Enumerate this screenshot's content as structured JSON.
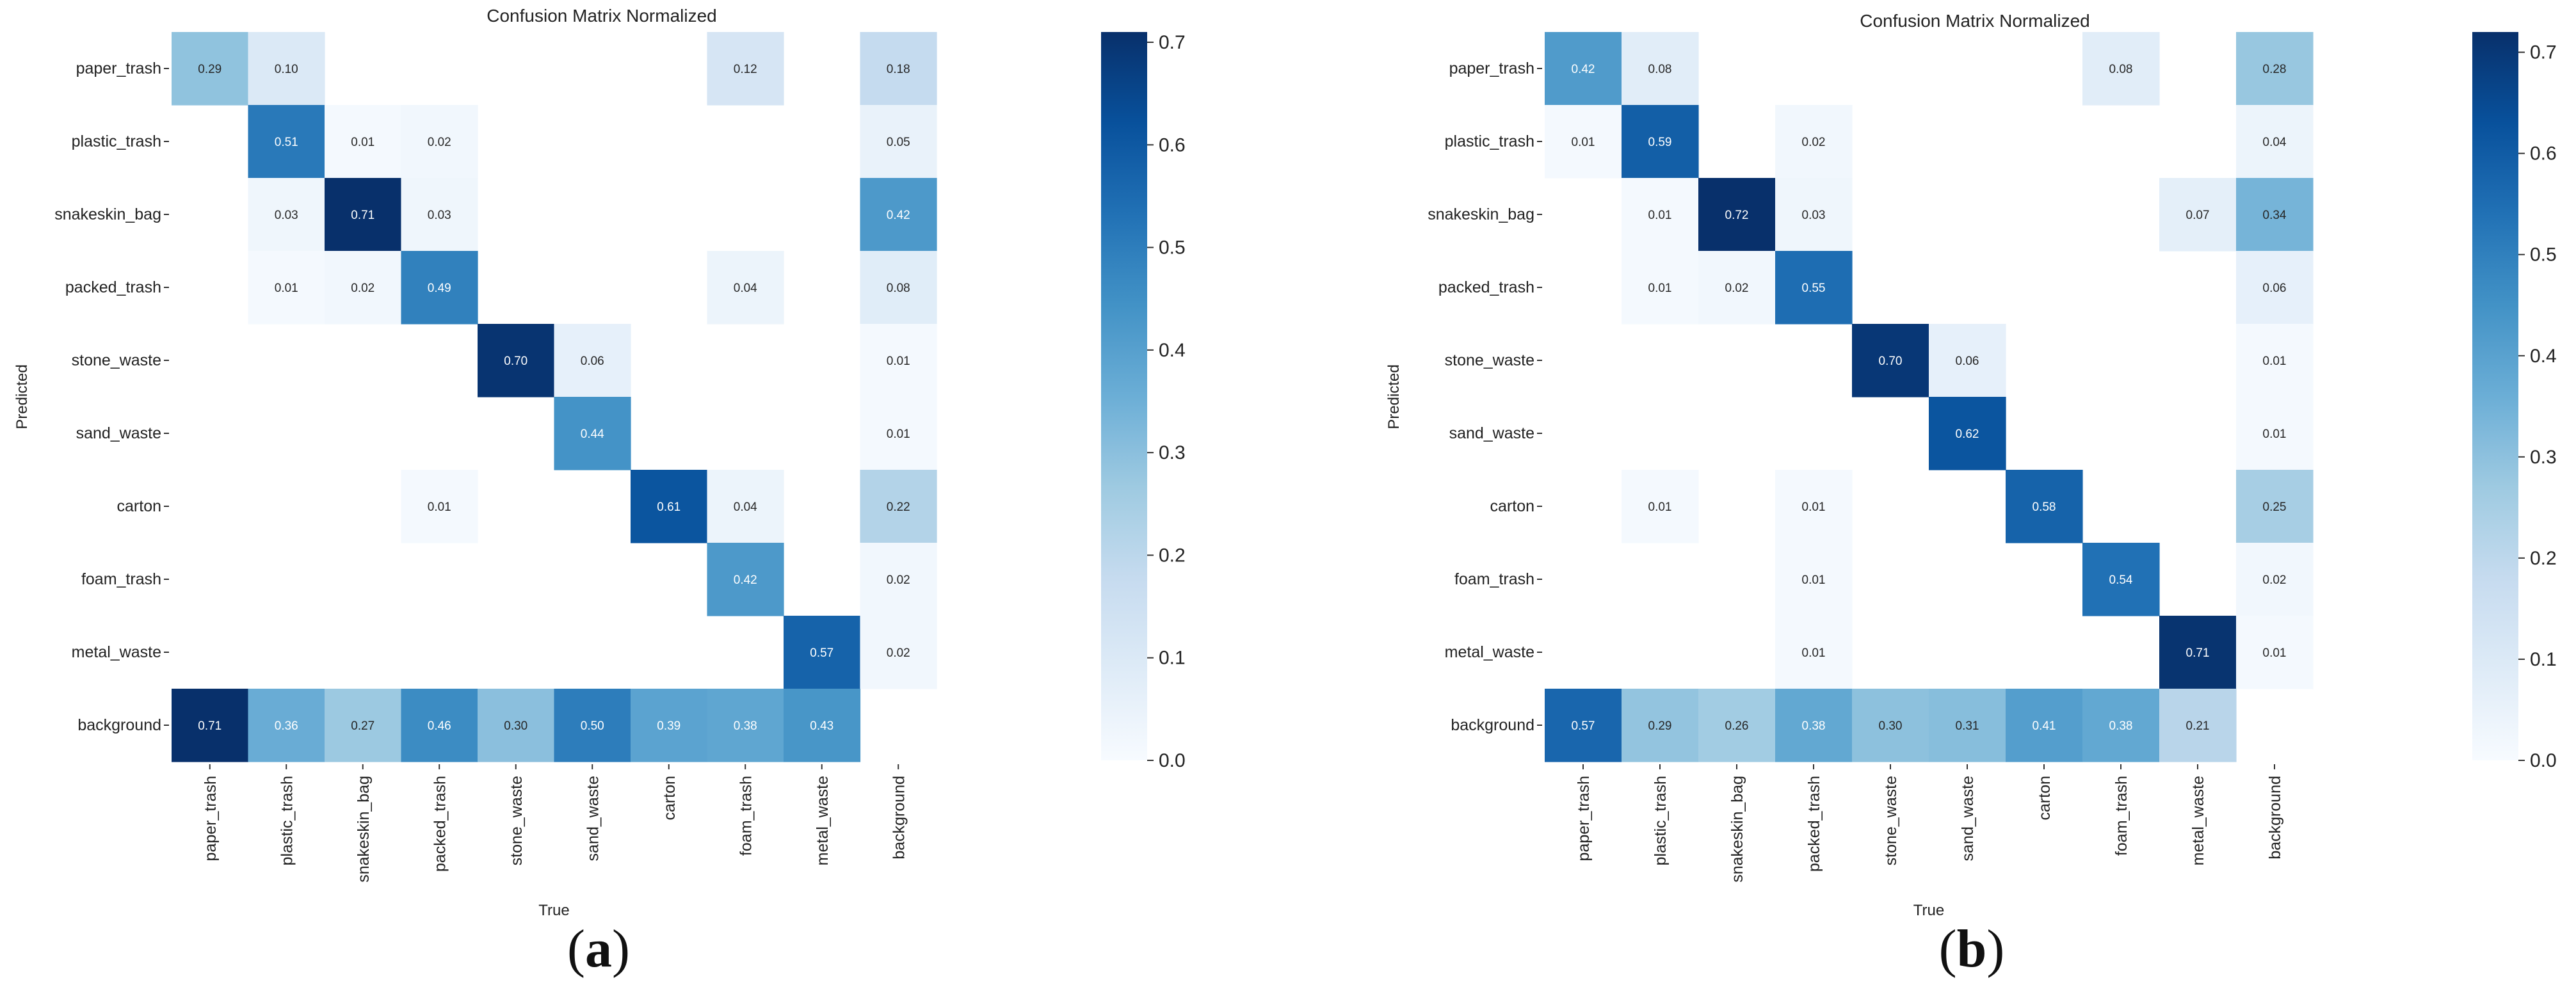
{
  "panels": [
    {
      "label_open": "(",
      "label_letter": "a",
      "label_close": ")"
    },
    {
      "label_open": "(",
      "label_letter": "b",
      "label_close": ")"
    }
  ],
  "chart_data": [
    {
      "type": "heatmap",
      "title": "Confusion Matrix Normalized",
      "xlabel": "True",
      "ylabel": "Predicted",
      "x_categories": [
        "paper_trash",
        "plastic_trash",
        "snakeskin_bag",
        "packed_trash",
        "stone_waste",
        "sand_waste",
        "carton",
        "foam_trash",
        "metal_waste",
        "background"
      ],
      "y_categories": [
        "paper_trash",
        "plastic_trash",
        "snakeskin_bag",
        "packed_trash",
        "stone_waste",
        "sand_waste",
        "carton",
        "foam_trash",
        "metal_waste",
        "background"
      ],
      "values": [
        [
          0.29,
          0.1,
          null,
          null,
          null,
          null,
          null,
          0.12,
          null,
          0.18
        ],
        [
          null,
          0.51,
          0.01,
          0.02,
          null,
          null,
          null,
          null,
          null,
          0.05
        ],
        [
          null,
          0.03,
          0.71,
          0.03,
          null,
          null,
          null,
          null,
          null,
          0.42
        ],
        [
          null,
          0.01,
          0.02,
          0.49,
          null,
          null,
          null,
          0.04,
          null,
          0.08
        ],
        [
          null,
          null,
          null,
          null,
          0.7,
          0.06,
          null,
          null,
          null,
          0.01
        ],
        [
          null,
          null,
          null,
          null,
          null,
          0.44,
          null,
          null,
          null,
          0.01
        ],
        [
          null,
          null,
          null,
          0.01,
          null,
          null,
          0.61,
          0.04,
          null,
          0.22
        ],
        [
          null,
          null,
          null,
          null,
          null,
          null,
          null,
          0.42,
          null,
          0.02
        ],
        [
          null,
          null,
          null,
          null,
          null,
          null,
          null,
          null,
          0.57,
          0.02
        ],
        [
          0.71,
          0.36,
          0.27,
          0.46,
          0.3,
          0.5,
          0.39,
          0.38,
          0.43,
          null
        ]
      ],
      "value_labels": [
        [
          "0.29",
          "0.10",
          "",
          "",
          "",
          "",
          "",
          "0.12",
          "",
          "0.18"
        ],
        [
          "",
          "0.51",
          "0.01",
          "0.02",
          "",
          "",
          "",
          "",
          "",
          "0.05"
        ],
        [
          "",
          "0.03",
          "0.71",
          "0.03",
          "",
          "",
          "",
          "",
          "",
          "0.42"
        ],
        [
          "",
          "0.01",
          "0.02",
          "0.49",
          "",
          "",
          "",
          "0.04",
          "",
          "0.08"
        ],
        [
          "",
          "",
          "",
          "",
          "0.70",
          "0.06",
          "",
          "",
          "",
          "0.01"
        ],
        [
          "",
          "",
          "",
          "",
          "",
          "0.44",
          "",
          "",
          "",
          "0.01"
        ],
        [
          "",
          "",
          "",
          "0.01",
          "",
          "",
          "0.61",
          "0.04",
          "",
          "0.22"
        ],
        [
          "",
          "",
          "",
          "",
          "",
          "",
          "",
          "0.42",
          "",
          "0.02"
        ],
        [
          "",
          "",
          "",
          "",
          "",
          "",
          "",
          "",
          "0.57",
          "0.02"
        ],
        [
          "0.71",
          "0.36",
          "0.27",
          "0.46",
          "0.30",
          "0.50",
          "0.39",
          "0.38",
          "0.43",
          ""
        ]
      ],
      "vmin": 0.0,
      "vmax": 0.71,
      "colormap": "Blues",
      "colorbar_ticks": [
        "0.0",
        "0.1",
        "0.2",
        "0.3",
        "0.4",
        "0.5",
        "0.6",
        "0.7"
      ]
    },
    {
      "type": "heatmap",
      "title": "Confusion Matrix Normalized",
      "xlabel": "True",
      "ylabel": "Predicted",
      "x_categories": [
        "paper_trash",
        "plastic_trash",
        "snakeskin_bag",
        "packed_trash",
        "stone_waste",
        "sand_waste",
        "carton",
        "foam_trash",
        "metal_waste",
        "background"
      ],
      "y_categories": [
        "paper_trash",
        "plastic_trash",
        "snakeskin_bag",
        "packed_trash",
        "stone_waste",
        "sand_waste",
        "carton",
        "foam_trash",
        "metal_waste",
        "background"
      ],
      "values": [
        [
          0.42,
          0.08,
          null,
          null,
          null,
          null,
          null,
          0.08,
          null,
          0.28
        ],
        [
          0.01,
          0.59,
          null,
          0.02,
          null,
          null,
          null,
          null,
          null,
          0.04
        ],
        [
          null,
          0.01,
          0.72,
          0.03,
          null,
          null,
          null,
          null,
          0.07,
          0.34
        ],
        [
          null,
          0.01,
          0.02,
          0.55,
          null,
          null,
          null,
          null,
          null,
          0.06
        ],
        [
          null,
          null,
          null,
          null,
          0.7,
          0.06,
          null,
          null,
          null,
          0.01
        ],
        [
          null,
          null,
          null,
          null,
          null,
          0.62,
          null,
          null,
          null,
          0.01
        ],
        [
          null,
          0.01,
          null,
          0.01,
          null,
          null,
          0.58,
          null,
          null,
          0.25
        ],
        [
          null,
          null,
          null,
          0.01,
          null,
          null,
          null,
          0.54,
          null,
          0.02
        ],
        [
          null,
          null,
          null,
          0.01,
          null,
          null,
          null,
          null,
          0.71,
          0.01
        ],
        [
          0.57,
          0.29,
          0.26,
          0.38,
          0.3,
          0.31,
          0.41,
          0.38,
          0.21,
          null
        ]
      ],
      "value_labels": [
        [
          "0.42",
          "0.08",
          "",
          "",
          "",
          "",
          "",
          "0.08",
          "",
          "0.28"
        ],
        [
          "0.01",
          "0.59",
          "",
          "0.02",
          "",
          "",
          "",
          "",
          "",
          "0.04"
        ],
        [
          "",
          "0.01",
          "0.72",
          "0.03",
          "",
          "",
          "",
          "",
          "0.07",
          "0.34"
        ],
        [
          "",
          "0.01",
          "0.02",
          "0.55",
          "",
          "",
          "",
          "",
          "",
          "0.06"
        ],
        [
          "",
          "",
          "",
          "",
          "0.70",
          "0.06",
          "",
          "",
          "",
          "0.01"
        ],
        [
          "",
          "",
          "",
          "",
          "",
          "0.62",
          "",
          "",
          "",
          "0.01"
        ],
        [
          "",
          "0.01",
          "",
          "0.01",
          "",
          "",
          "0.58",
          "",
          "",
          "0.25"
        ],
        [
          "",
          "",
          "",
          "0.01",
          "",
          "",
          "",
          "0.54",
          "",
          "0.02"
        ],
        [
          "",
          "",
          "",
          "0.01",
          "",
          "",
          "",
          "",
          "0.71",
          "0.01"
        ],
        [
          "0.57",
          "0.29",
          "0.26",
          "0.38",
          "0.30",
          "0.31",
          "0.41",
          "0.38",
          "0.21",
          ""
        ]
      ],
      "vmin": 0.0,
      "vmax": 0.72,
      "colormap": "Blues",
      "colorbar_ticks": [
        "0.0",
        "0.1",
        "0.2",
        "0.3",
        "0.4",
        "0.5",
        "0.6",
        "0.7"
      ]
    }
  ]
}
